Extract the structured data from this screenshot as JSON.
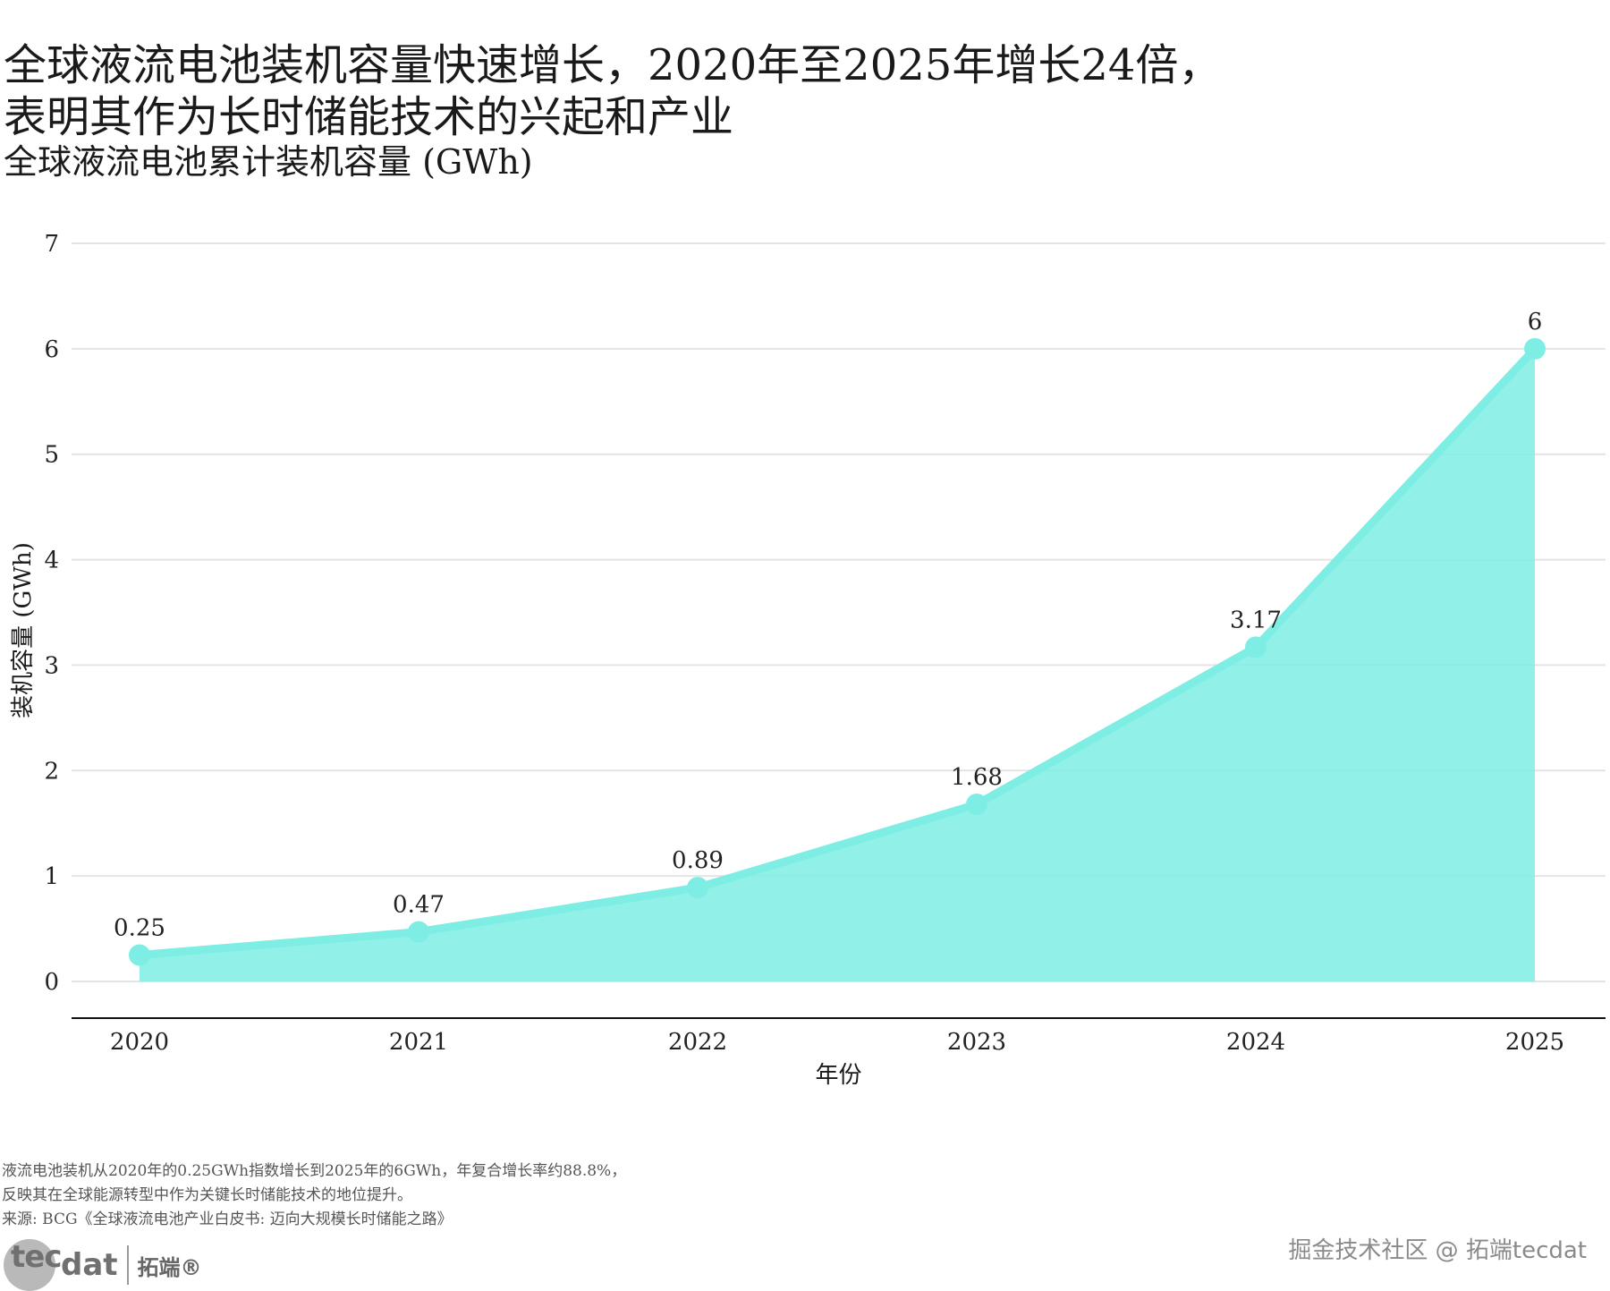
{
  "title": "全球液流电池装机容量快速增长，2020年至2025年增长24倍，表明其作为长时储能技术的兴起和产业",
  "subtitle": "全球液流电池累计装机容量 (GWh)",
  "chart_data": {
    "type": "area",
    "categories": [
      "2020",
      "2021",
      "2022",
      "2023",
      "2024",
      "2025"
    ],
    "values": [
      0.25,
      0.47,
      0.89,
      1.68,
      3.17,
      6
    ],
    "data_labels": [
      "0.25",
      "0.47",
      "0.89",
      "1.68",
      "3.17",
      "6"
    ],
    "xlabel": "年份",
    "ylabel": "装机容量 (GWh)",
    "ylim": [
      0,
      7
    ],
    "yticks": [
      0,
      1,
      2,
      3,
      4,
      5,
      6,
      7
    ],
    "grid": true,
    "color": "#7eeee4"
  },
  "caption": {
    "line1": "液流电池装机从2020年的0.25GWh指数增长到2025年的6GWh，年复合增长率约88.8%，",
    "line2": "反映其在全球能源转型中作为关键长时储能技术的地位提升。",
    "line3": "来源: BCG《全球液流电池产业白皮书: 迈向大规模长时储能之路》"
  },
  "logo": {
    "tec": "tec",
    "dat": "dat",
    "cn": "拓端®"
  },
  "watermark": "掘金技术社区 @ 拓端tecdat"
}
